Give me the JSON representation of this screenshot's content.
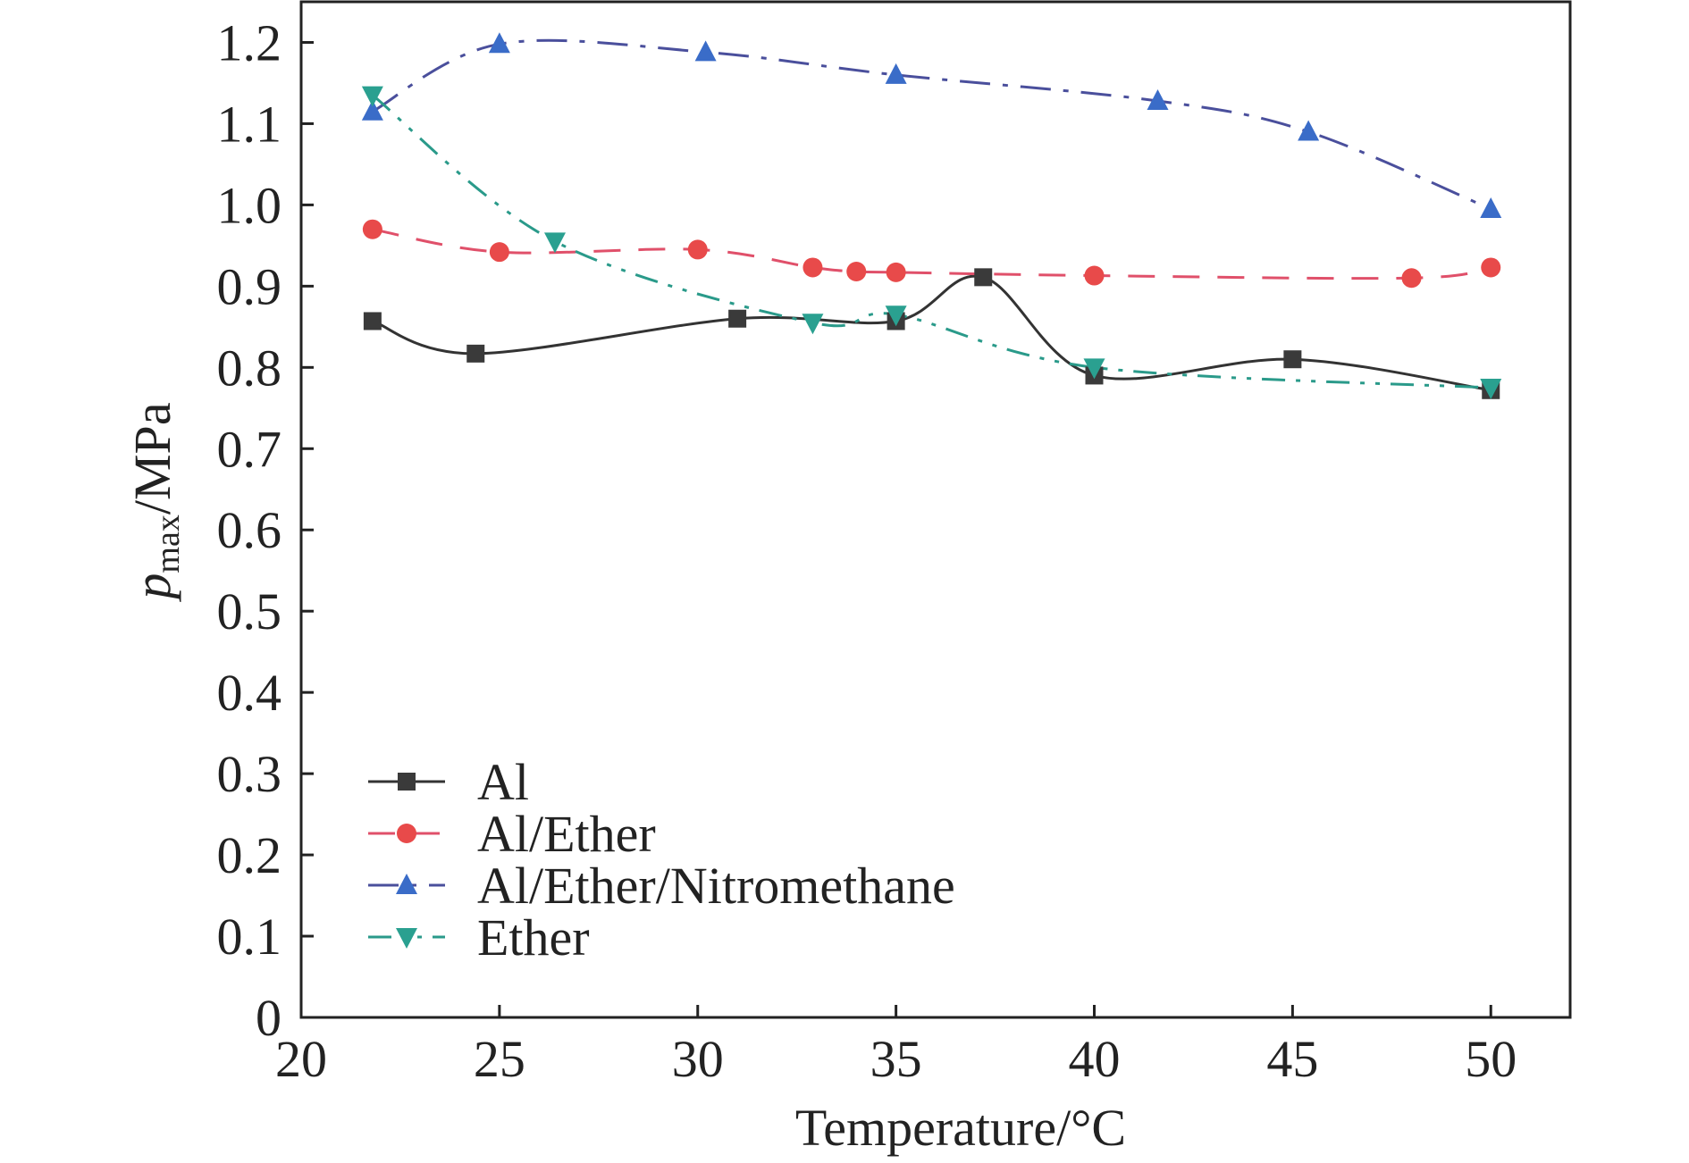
{
  "chart_data": {
    "type": "line",
    "title": "",
    "xlabel": "Temperature/°C",
    "ylabel_main": "p",
    "ylabel_sub": "max",
    "ylabel_unit": "/MPa",
    "xlim": [
      20,
      52
    ],
    "ylim": [
      0,
      1.25
    ],
    "xticks": [
      "20",
      "25",
      "30",
      "35",
      "40",
      "45",
      "50"
    ],
    "yticks": [
      "0",
      "0.1",
      "0.2",
      "0.3",
      "0.4",
      "0.5",
      "0.6",
      "0.7",
      "0.8",
      "0.9",
      "1.0",
      "1.1",
      "1.2"
    ],
    "grid": false,
    "legend_position": "bottom-left",
    "series": [
      {
        "name": "Al",
        "marker": "square",
        "line_style": "solid",
        "color": "#333333",
        "marker_color": "#3a3a3a",
        "x": [
          21.8,
          24.4,
          31.0,
          35.0,
          37.2,
          40.0,
          45.0,
          50.0
        ],
        "y": [
          0.857,
          0.817,
          0.86,
          0.857,
          0.911,
          0.79,
          0.81,
          0.772
        ]
      },
      {
        "name": "Al/Ether",
        "marker": "circle",
        "line_style": "dashed",
        "color": "#e0506a",
        "marker_color": "#e84a4a",
        "x": [
          21.8,
          25.0,
          30.0,
          32.9,
          34.0,
          35.0,
          40.0,
          48.0,
          50.0
        ],
        "y": [
          0.97,
          0.942,
          0.945,
          0.923,
          0.918,
          0.917,
          0.913,
          0.91,
          0.923
        ]
      },
      {
        "name": "Al/Ether/Nitromethane",
        "marker": "triangle-up",
        "line_style": "dash-dot",
        "color": "#4a4f9c",
        "marker_color": "#3a6cc8",
        "x": [
          21.8,
          25.0,
          30.2,
          35.0,
          41.6,
          45.4,
          50.0
        ],
        "y": [
          1.115,
          1.198,
          1.188,
          1.16,
          1.128,
          1.09,
          0.995
        ]
      },
      {
        "name": "Ether",
        "marker": "triangle-down",
        "line_style": "dash-dot-dot",
        "color": "#2a9a8a",
        "marker_color": "#2aa090",
        "x": [
          21.8,
          26.4,
          32.9,
          35.0,
          40.0,
          50.0
        ],
        "y": [
          1.135,
          0.955,
          0.855,
          0.865,
          0.8,
          0.775
        ]
      }
    ]
  }
}
